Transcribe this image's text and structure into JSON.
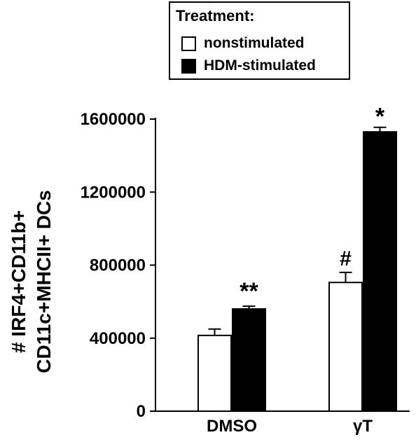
{
  "chart_data": {
    "type": "bar",
    "title": "",
    "ylabel": [
      "# IRF4+CD11b+",
      "CD11c+MHCII+ DCs"
    ],
    "xlabel": "",
    "ylim": [
      0,
      1600000
    ],
    "yticks": [
      "0",
      "400000",
      "800000",
      "1200000",
      "1600000"
    ],
    "categories": [
      "DMSO",
      "γT"
    ],
    "legend": {
      "title": "Treatment:",
      "placement": "top-right"
    },
    "series": [
      {
        "name": "nonstimulated",
        "color": "#ffffff",
        "values": [
          415000,
          705000
        ],
        "errors": [
          35000,
          55000
        ],
        "annotations": [
          "",
          "#"
        ]
      },
      {
        "name": "HDM-stimulated",
        "color": "#000000",
        "values": [
          560000,
          1530000
        ],
        "errors": [
          15000,
          25000
        ],
        "annotations": [
          "**",
          "*"
        ]
      }
    ]
  }
}
